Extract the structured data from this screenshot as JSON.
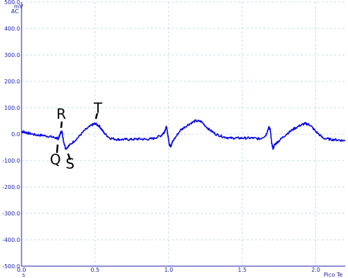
{
  "chart_data": {
    "type": "line",
    "y_unit_top": "mV",
    "y_coupling": "AC",
    "x_unit": "s",
    "watermark": "Pico Te",
    "xlim": [
      0.0,
      2.2
    ],
    "ylim": [
      -500,
      500
    ],
    "x_ticks": [
      "0.0",
      "0.5",
      "1.0",
      "1.5",
      "2.0"
    ],
    "y_ticks": [
      "500.0",
      "400.0",
      "300.0",
      "200.0",
      "100.0",
      "0.0",
      "-100.0",
      "-200.0",
      "-300.0",
      "-400.0",
      "-500.0"
    ],
    "grid": true,
    "series_color": "#0000e6",
    "series": [
      {
        "x": [
          0.0,
          0.02,
          0.05,
          0.1,
          0.15,
          0.2,
          0.24,
          0.25,
          0.265,
          0.275,
          0.285,
          0.3,
          0.33,
          0.38,
          0.43,
          0.48,
          0.5,
          0.53,
          0.56,
          0.6,
          0.65,
          0.7,
          0.75,
          0.8,
          0.85,
          0.9,
          0.95,
          0.97,
          0.985,
          0.995,
          1.005,
          1.015,
          1.03,
          1.08,
          1.13,
          1.18,
          1.22,
          1.27,
          1.32,
          1.37,
          1.42,
          1.47,
          1.52,
          1.57,
          1.62,
          1.66,
          1.68,
          1.69,
          1.7,
          1.71,
          1.72,
          1.75,
          1.8,
          1.85,
          1.9,
          1.93,
          1.96,
          2.0,
          2.05,
          2.1,
          2.15,
          2.2
        ],
        "y": [
          10,
          8,
          3,
          -3,
          -5,
          -10,
          -15,
          -18,
          5,
          10,
          -25,
          -55,
          -40,
          -15,
          15,
          35,
          40,
          30,
          5,
          -15,
          -20,
          -20,
          -20,
          -18,
          -20,
          -16,
          -5,
          8,
          28,
          -5,
          -40,
          -45,
          -25,
          15,
          35,
          50,
          48,
          20,
          0,
          -10,
          -15,
          -15,
          -15,
          -15,
          -18,
          -5,
          25,
          20,
          -35,
          -55,
          -40,
          -25,
          0,
          20,
          35,
          40,
          35,
          10,
          -15,
          -20,
          -22,
          -25
        ]
      }
    ],
    "annotations": [
      {
        "text": "R",
        "x": 0.27,
        "y": 58
      },
      {
        "text": "Q",
        "x": 0.23,
        "y": -115
      },
      {
        "text": "S",
        "x": 0.33,
        "y": -130
      },
      {
        "text": "T",
        "x": 0.52,
        "y": 80
      }
    ]
  }
}
